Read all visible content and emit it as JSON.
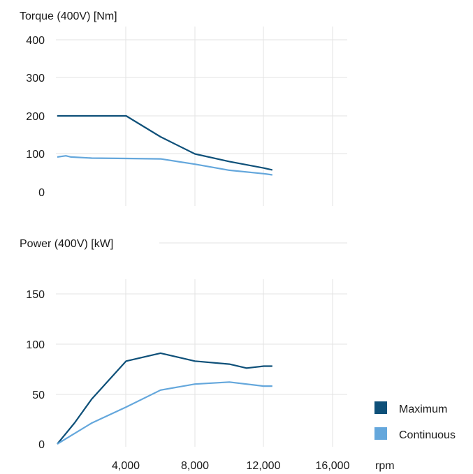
{
  "chart_data": [
    {
      "type": "line",
      "title": "Torque (400V) [Nm]",
      "xlabel": "rpm",
      "ylabel": "",
      "xlim": [
        0,
        17000
      ],
      "ylim": [
        0,
        400
      ],
      "y_ticks": [
        "0",
        "100",
        "200",
        "300",
        "400"
      ],
      "grid": true,
      "series": [
        {
          "name": "Maximum",
          "color": "#0e5079",
          "x": [
            0,
            4000,
            6000,
            8000,
            10000,
            12000,
            12500
          ],
          "y": [
            200,
            200,
            145,
            100,
            80,
            63,
            58
          ]
        },
        {
          "name": "Continuous",
          "color": "#64a7dc",
          "x": [
            0,
            500,
            800,
            2000,
            4000,
            6000,
            8000,
            10000,
            12000,
            12500
          ],
          "y": [
            92,
            95,
            92,
            89,
            88,
            87,
            73,
            57,
            48,
            45
          ]
        }
      ]
    },
    {
      "type": "line",
      "title": "Power (400V) [kW]",
      "xlabel": "rpm",
      "ylabel": "",
      "xlim": [
        0,
        17000
      ],
      "ylim": [
        0,
        175
      ],
      "y_ticks": [
        "0",
        "50",
        "100",
        "150"
      ],
      "x_ticks": [
        "4,000",
        "8,000",
        "12,000",
        "16,000"
      ],
      "grid": true,
      "series": [
        {
          "name": "Maximum",
          "color": "#0e5079",
          "x": [
            0,
            1000,
            2000,
            4000,
            6000,
            8000,
            10000,
            11000,
            12000,
            12500
          ],
          "y": [
            0,
            21,
            45,
            83,
            91,
            83,
            80,
            76,
            78,
            78
          ]
        },
        {
          "name": "Continuous",
          "color": "#64a7dc",
          "x": [
            0,
            2000,
            4000,
            6000,
            8000,
            10000,
            12000,
            12500
          ],
          "y": [
            0,
            21,
            37,
            54,
            60,
            62,
            58,
            58
          ]
        }
      ]
    }
  ],
  "legend": {
    "placement": "bottom-right",
    "items": [
      {
        "label": "Maximum",
        "color": "#0e5079"
      },
      {
        "label": "Continuous",
        "color": "#64a7dc"
      }
    ]
  }
}
